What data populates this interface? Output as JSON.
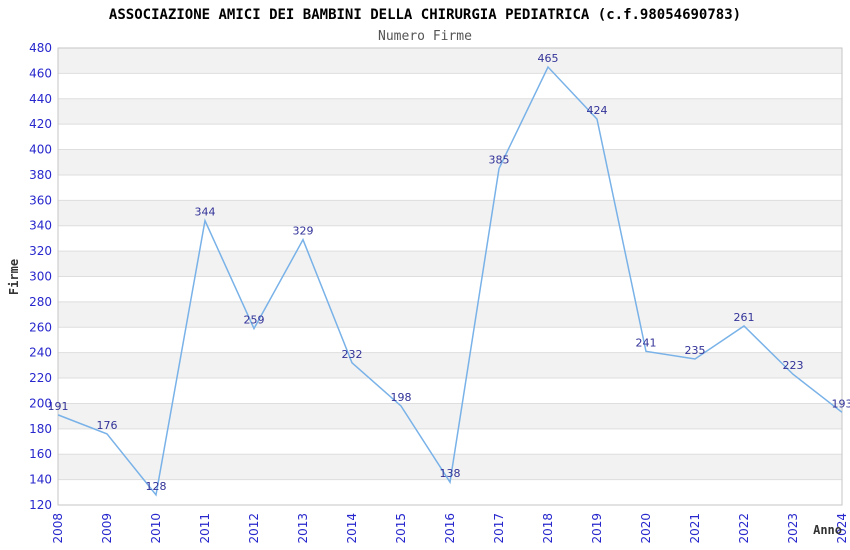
{
  "title": "ASSOCIAZIONE AMICI DEI BAMBINI DELLA CHIRURGIA PEDIATRICA (c.f.98054690783)",
  "subtitle": "Numero Firme",
  "chart_data": {
    "type": "line",
    "categories": [
      "2008",
      "2009",
      "2010",
      "2011",
      "2012",
      "2013",
      "2014",
      "2015",
      "2016",
      "2017",
      "2018",
      "2019",
      "2020",
      "2021",
      "2022",
      "2023",
      "2024"
    ],
    "values": [
      191,
      176,
      128,
      344,
      259,
      329,
      232,
      198,
      138,
      385,
      465,
      424,
      241,
      235,
      261,
      223,
      193
    ],
    "title": "ASSOCIAZIONE AMICI DEI BAMBINI DELLA CHIRURGIA PEDIATRICA (c.f.98054690783)",
    "subtitle": "Numero Firme",
    "xlabel": "Anno",
    "ylabel": "Firme",
    "ylim": [
      120,
      480
    ],
    "ytick_step": 20,
    "grid": true,
    "alternating_bands": true,
    "legend": "none",
    "data_labels": true,
    "colors": {
      "line": "#79b2e8",
      "tick_label": "#2727cd",
      "data_label": "#333399",
      "band_fill": "#f2f2f2",
      "gridline": "#dedede",
      "plot_border": "#c6c6c6",
      "background": "#ffffff"
    }
  }
}
